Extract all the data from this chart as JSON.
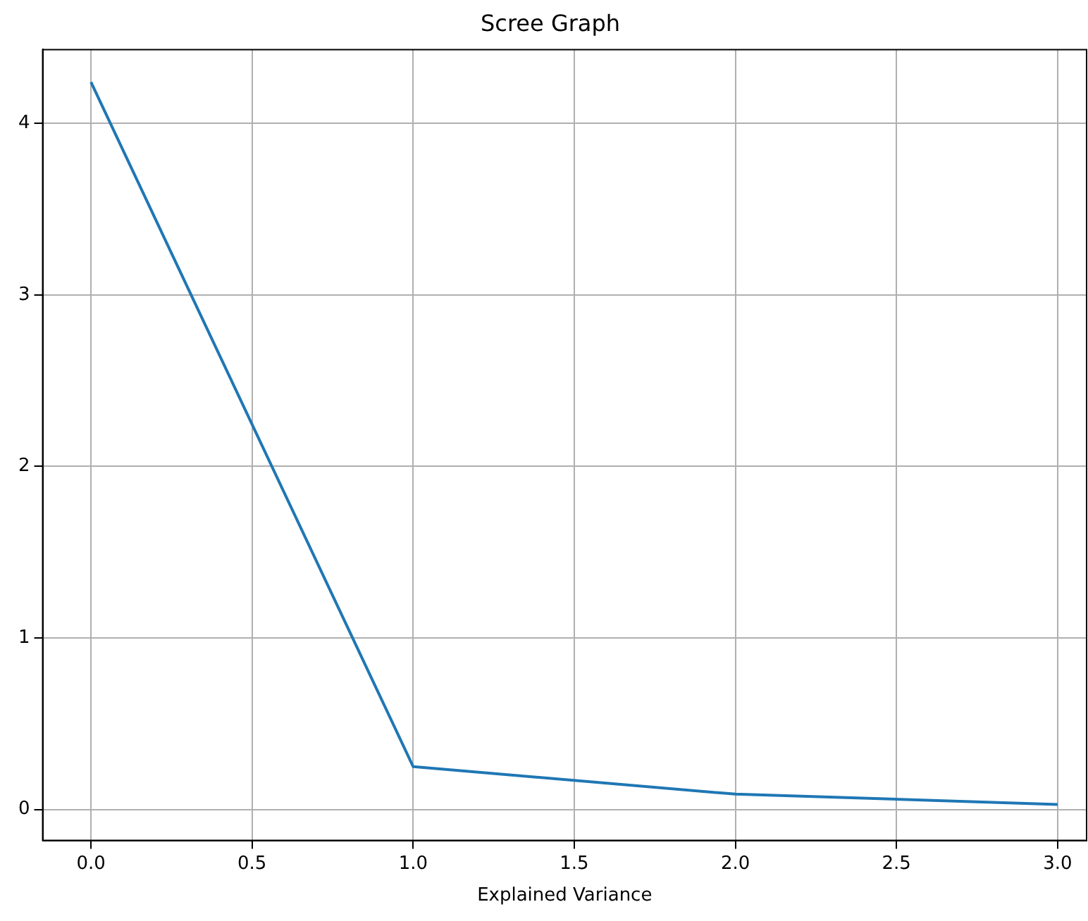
{
  "chart_data": {
    "type": "line",
    "title": "Scree Graph",
    "xlabel": "Explained Variance",
    "x": [
      0,
      1,
      2,
      3
    ],
    "values": [
      4.24,
      0.25,
      0.09,
      0.03
    ],
    "color": "#1f77b4",
    "xlim": [
      -0.15,
      3.09
    ],
    "ylim": [
      -0.18,
      4.43
    ],
    "xticks": [
      {
        "value": 0,
        "label": "0.0"
      },
      {
        "value": 0.5,
        "label": "0.5"
      },
      {
        "value": 1,
        "label": "1.0"
      },
      {
        "value": 1.5,
        "label": "1.5"
      },
      {
        "value": 2,
        "label": "2.0"
      },
      {
        "value": 2.5,
        "label": "2.5"
      },
      {
        "value": 3,
        "label": "3.0"
      }
    ],
    "yticks": [
      0,
      1,
      2,
      3,
      4
    ],
    "grid": true
  }
}
